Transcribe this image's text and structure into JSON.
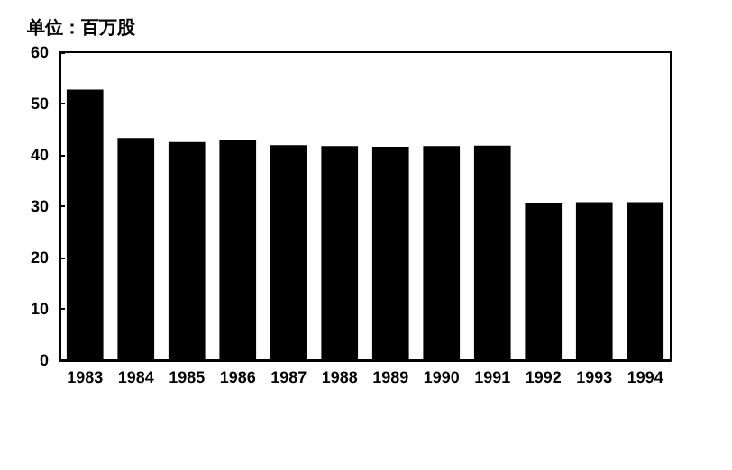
{
  "chart_data": {
    "type": "bar",
    "ylabel": "单位：百万股",
    "categories": [
      "1983",
      "1984",
      "1985",
      "1986",
      "1987",
      "1988",
      "1989",
      "1990",
      "1991",
      "1992",
      "1993",
      "1994"
    ],
    "values": [
      52.7,
      43.3,
      42.5,
      42.8,
      41.9,
      41.7,
      41.6,
      41.7,
      41.8,
      30.6,
      30.8,
      30.8
    ],
    "color": "#000000",
    "ylim": [
      0,
      60
    ],
    "yticks": [
      0,
      10,
      20,
      30,
      40,
      50,
      60
    ],
    "grid": false
  }
}
